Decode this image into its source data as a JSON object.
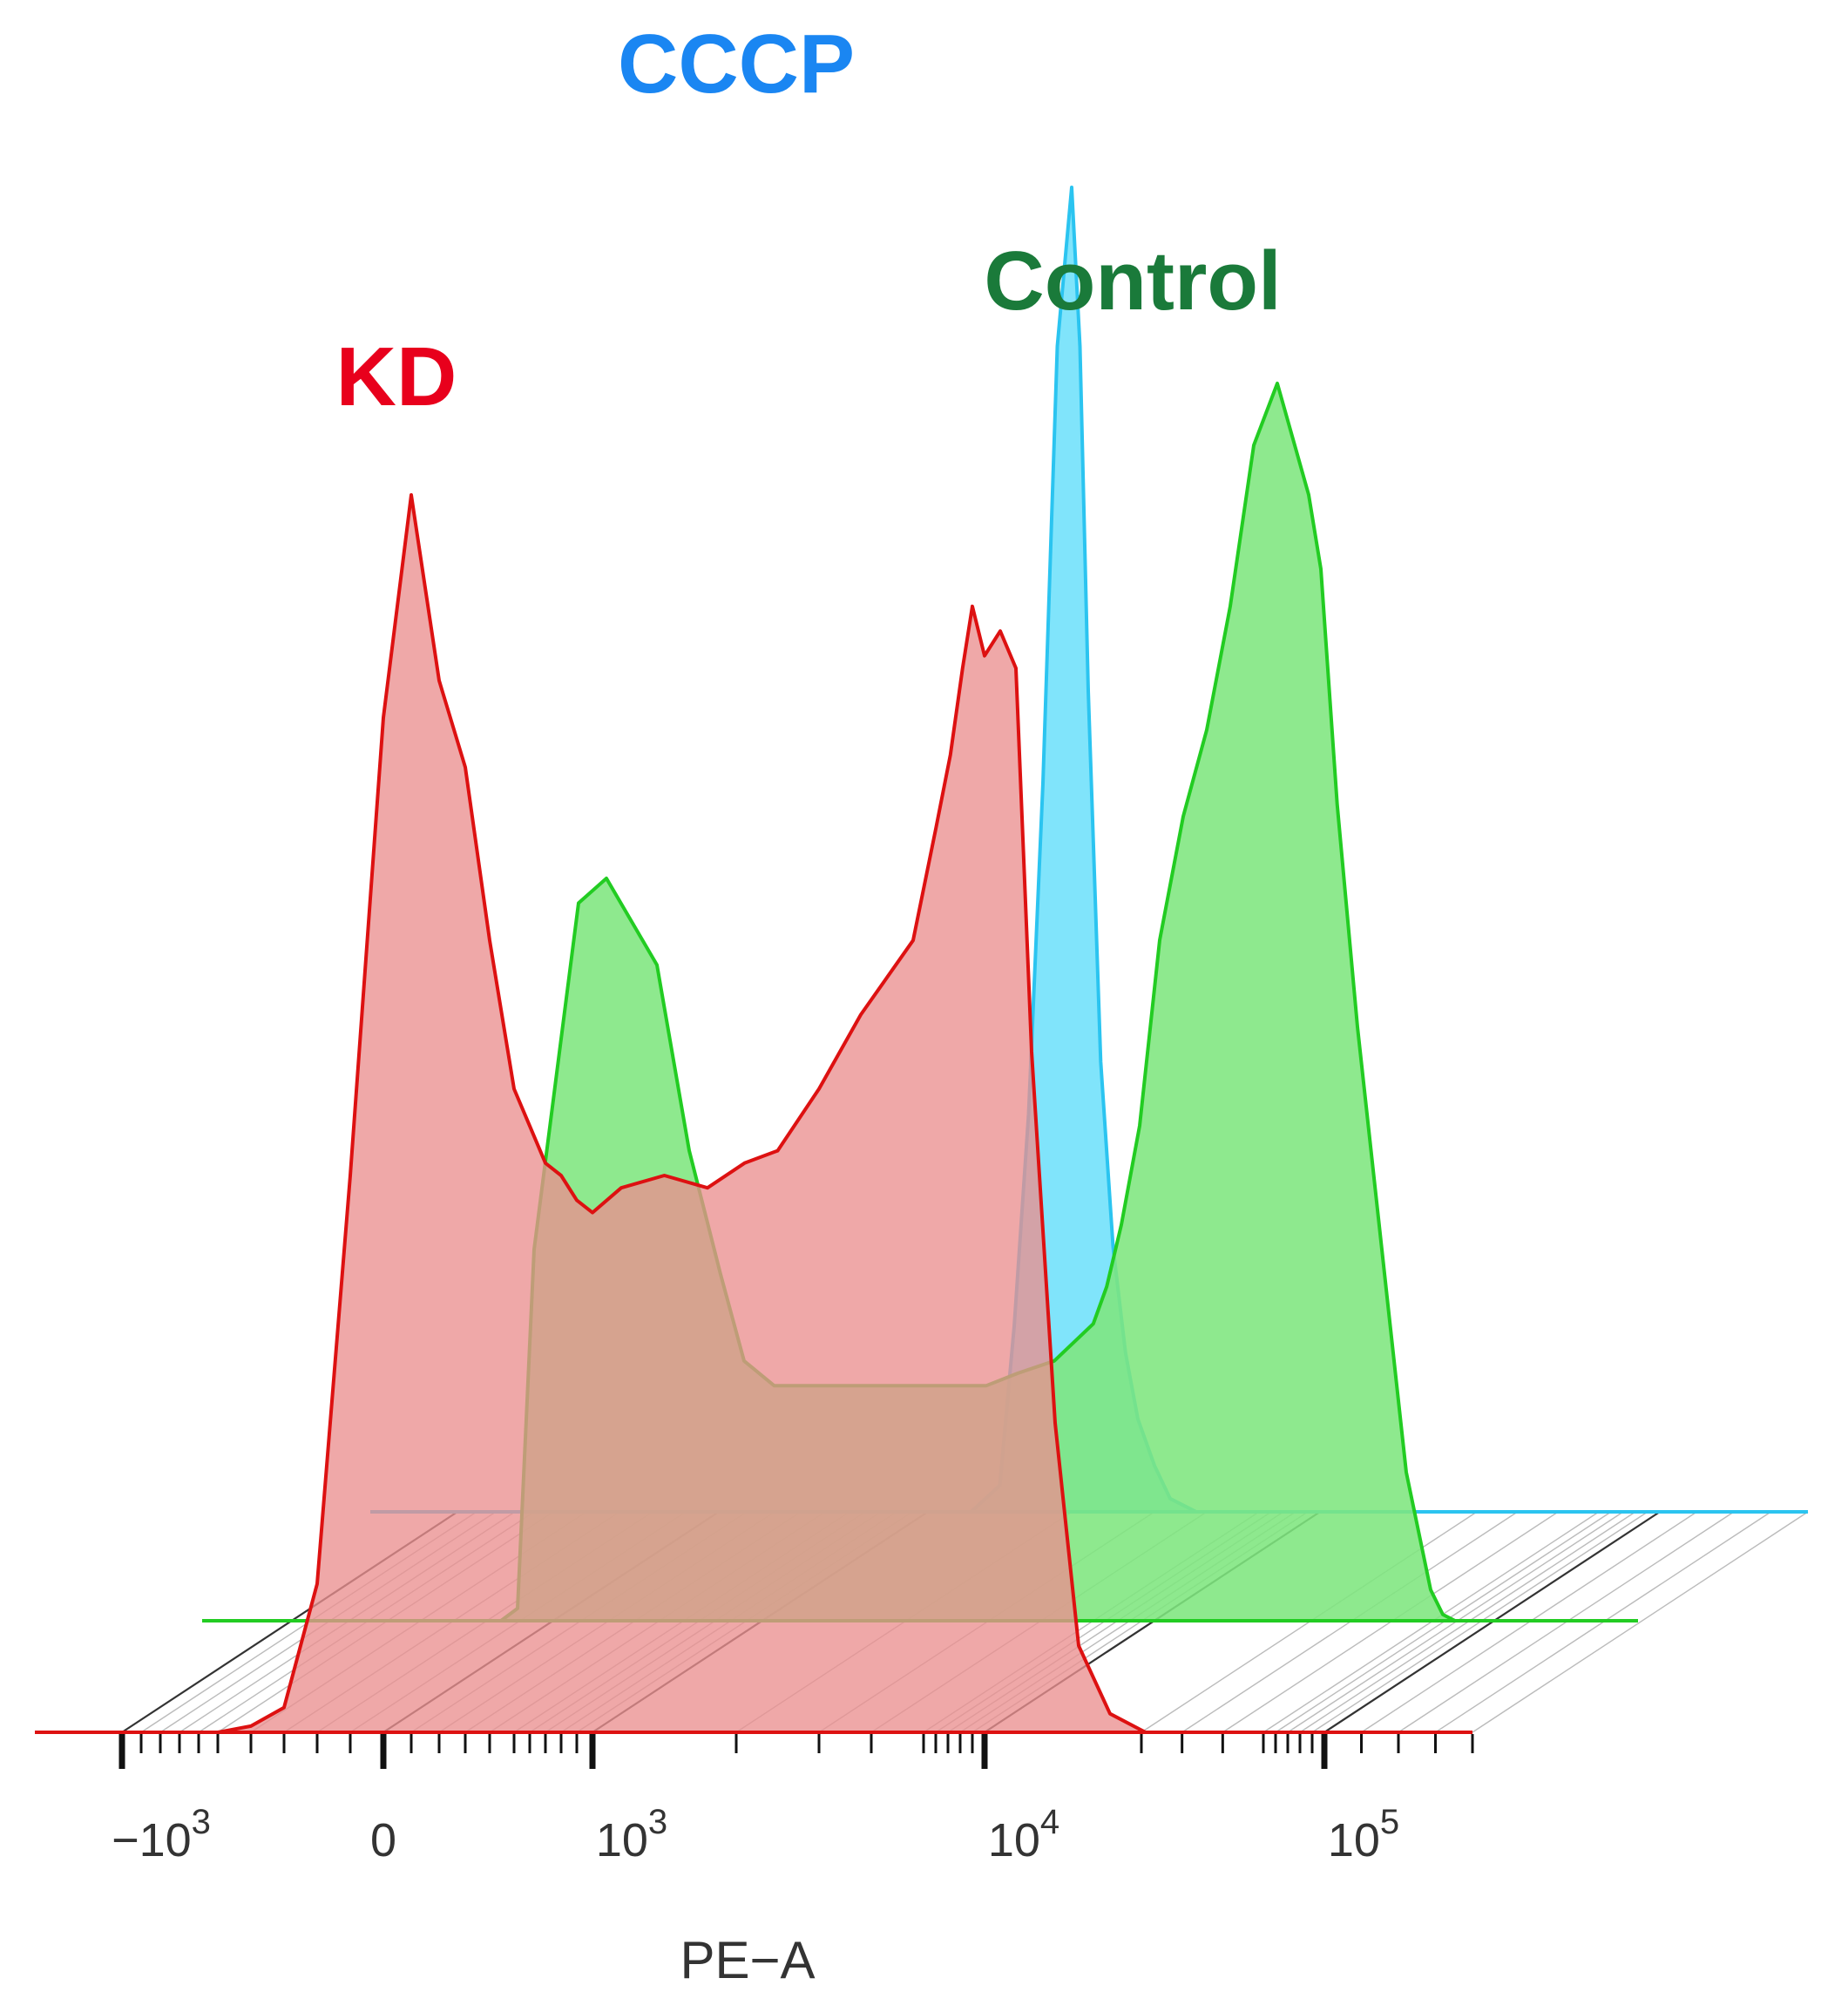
{
  "chart_data": {
    "type": "area",
    "subtype": "flow-cytometry-offset-histogram",
    "title": "",
    "xlabel": "PE−A",
    "ylabel": "",
    "x_scale": "logicle",
    "xlim": [
      -1600,
      180000
    ],
    "grid": false,
    "legend": "none (labels drawn above each histogram)",
    "x_ticks": [
      {
        "value": -1000,
        "base": "−10",
        "exp": "3"
      },
      {
        "value": 0,
        "base": "0",
        "exp": ""
      },
      {
        "value": 1000,
        "base": "10",
        "exp": "3"
      },
      {
        "value": 10000,
        "base": "10",
        "exp": "4"
      },
      {
        "value": 100000,
        "base": "10",
        "exp": "5"
      }
    ],
    "series": [
      {
        "name": "CCCP",
        "label_color": "#1a86f2",
        "line_color": "#2bc4f0",
        "fill_color": "#6ee0fb",
        "points": [
          [
            1300,
            0
          ],
          [
            1500,
            0.02
          ],
          [
            1600,
            0.14
          ],
          [
            1700,
            0.3
          ],
          [
            1800,
            0.55
          ],
          [
            1900,
            0.88
          ],
          [
            2000,
            1.0
          ],
          [
            2100,
            0.88
          ],
          [
            2200,
            0.62
          ],
          [
            2350,
            0.34
          ],
          [
            2500,
            0.2
          ],
          [
            2650,
            0.12
          ],
          [
            2800,
            0.07
          ],
          [
            3000,
            0.035
          ],
          [
            3300,
            0.01
          ],
          [
            3800,
            0
          ]
        ]
      },
      {
        "name": "Control",
        "label_color": "#1a7a3a",
        "line_color": "#22cc22",
        "fill_color": "#7ee67e",
        "points": [
          [
            -150,
            0
          ],
          [
            -100,
            0.01
          ],
          [
            -50,
            0.3
          ],
          [
            100,
            0.58
          ],
          [
            200,
            0.6
          ],
          [
            400,
            0.53
          ],
          [
            550,
            0.38
          ],
          [
            750,
            0.28
          ],
          [
            900,
            0.21
          ],
          [
            1100,
            0.19
          ],
          [
            1300,
            0.19
          ],
          [
            1600,
            0.19
          ],
          [
            2000,
            0.19
          ],
          [
            2500,
            0.19
          ],
          [
            3000,
            0.19
          ],
          [
            3600,
            0.2
          ],
          [
            4300,
            0.21
          ],
          [
            5200,
            0.24
          ],
          [
            6300,
            0.27
          ],
          [
            7500,
            0.32
          ],
          [
            9000,
            0.4
          ],
          [
            10500,
            0.55
          ],
          [
            12000,
            0.65
          ],
          [
            13500,
            0.72
          ],
          [
            15000,
            0.82
          ],
          [
            16500,
            0.95
          ],
          [
            18000,
            1.0
          ],
          [
            20000,
            0.91
          ],
          [
            23000,
            0.85
          ],
          [
            27000,
            0.66
          ],
          [
            32000,
            0.48
          ],
          [
            38000,
            0.3
          ],
          [
            44000,
            0.12
          ],
          [
            50000,
            0.025
          ],
          [
            60000,
            0.005
          ],
          [
            70000,
            0
          ]
        ]
      },
      {
        "name": "KD",
        "label_color": "#e8001c",
        "line_color": "#dd1111",
        "fill_color": "#ea8f8f",
        "points": [
          [
            -500,
            0
          ],
          [
            -400,
            0.005
          ],
          [
            -300,
            0.02
          ],
          [
            -200,
            0.12
          ],
          [
            -100,
            0.45
          ],
          [
            0,
            0.82
          ],
          [
            100,
            1.0
          ],
          [
            200,
            0.85
          ],
          [
            300,
            0.78
          ],
          [
            400,
            0.64
          ],
          [
            500,
            0.52
          ],
          [
            600,
            0.49
          ],
          [
            700,
            0.46
          ],
          [
            800,
            0.45
          ],
          [
            900,
            0.43
          ],
          [
            1000,
            0.42
          ],
          [
            1200,
            0.44
          ],
          [
            1500,
            0.45
          ],
          [
            1800,
            0.44
          ],
          [
            2100,
            0.46
          ],
          [
            2500,
            0.47
          ],
          [
            3000,
            0.52
          ],
          [
            3800,
            0.58
          ],
          [
            4800,
            0.64
          ],
          [
            6000,
            0.73
          ],
          [
            7200,
            0.79
          ],
          [
            8200,
            0.86
          ],
          [
            9000,
            0.91
          ],
          [
            10000,
            0.87
          ],
          [
            11000,
            0.89
          ],
          [
            12000,
            0.86
          ],
          [
            13000,
            0.55
          ],
          [
            14500,
            0.25
          ],
          [
            16000,
            0.07
          ],
          [
            18000,
            0.015
          ],
          [
            21000,
            0
          ]
        ]
      }
    ],
    "labels": [
      {
        "text": "CCCP",
        "color": "#1a86f2"
      },
      {
        "text": "Control",
        "color": "#1a7a3a"
      },
      {
        "text": "KD",
        "color": "#e8001c"
      }
    ]
  }
}
